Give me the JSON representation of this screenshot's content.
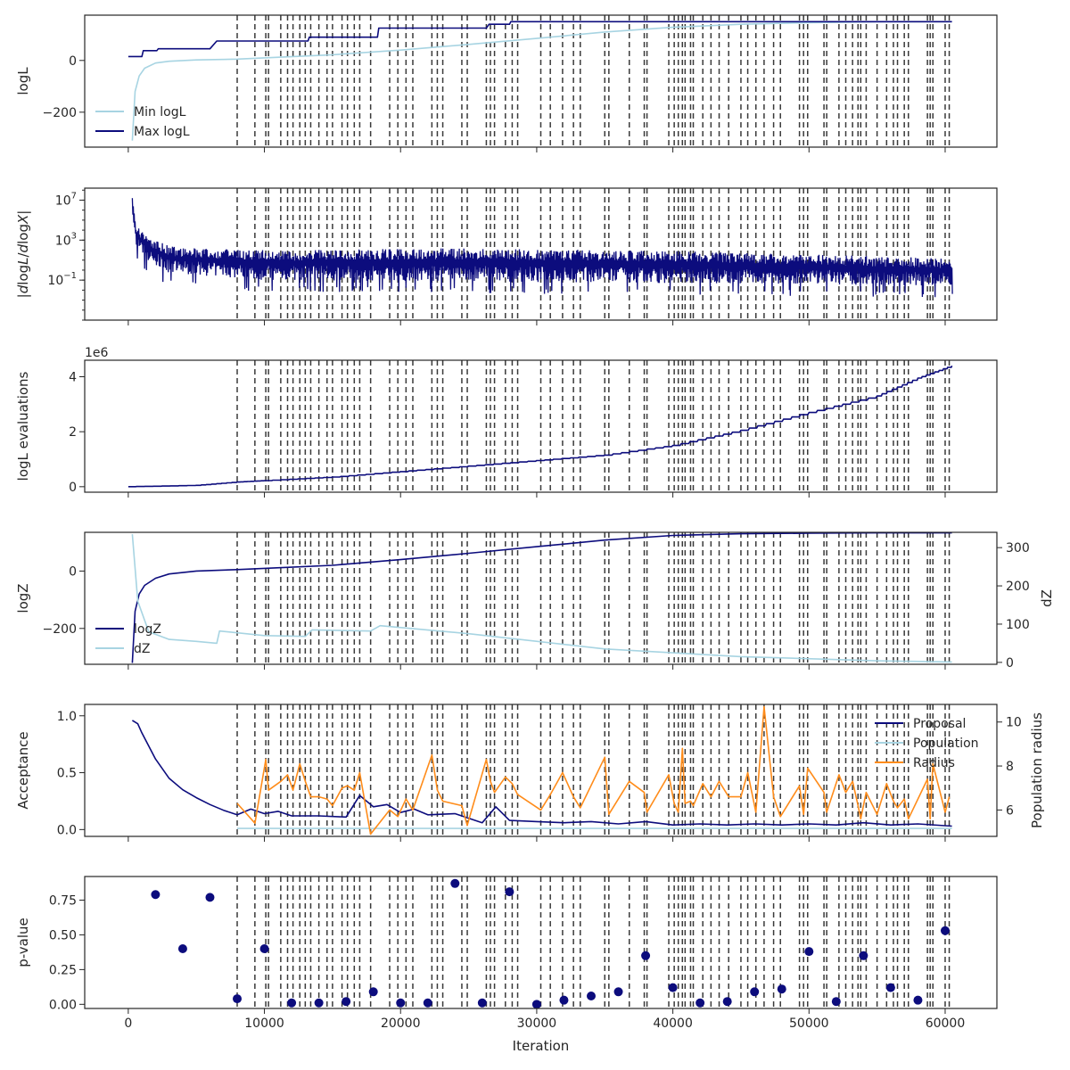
{
  "figure": {
    "iteration_label": "Iteration",
    "x_ticks": [
      0,
      10000,
      20000,
      30000,
      40000,
      50000,
      60000
    ],
    "x_range": [
      -3200,
      63800
    ],
    "colors": {
      "navy": "#0c0c7d",
      "lightblue": "#a7d4e2",
      "orange": "#ff8c1a",
      "axis": "#262626",
      "vline": "#3a3a3a"
    },
    "vlines": [
      8000,
      9300,
      10100,
      10300,
      11200,
      11700,
      12100,
      12600,
      13000,
      13400,
      14000,
      14600,
      15000,
      15700,
      16100,
      16600,
      17000,
      17800,
      19200,
      19800,
      20400,
      20900,
      22300,
      22700,
      23100,
      24500,
      24900,
      26300,
      26600,
      26900,
      27700,
      28200,
      28600,
      30300,
      31000,
      31900,
      32700,
      33200,
      35000,
      35300,
      36800,
      37900,
      38100,
      39700,
      40100,
      40400,
      40700,
      40900,
      41300,
      41500,
      42200,
      42800,
      43400,
      44100,
      45000,
      45500,
      46100,
      46700,
      47400,
      47900,
      49300,
      49600,
      49900,
      51100,
      51300,
      52200,
      52700,
      53200,
      53600,
      53800,
      54200,
      55000,
      55700,
      56200,
      56500,
      57000,
      57300,
      58700,
      58900,
      59100,
      60000,
      60300
    ]
  },
  "chart_data": [
    {
      "type": "line",
      "ylabel": "logL",
      "yticks": [
        -200,
        0
      ],
      "ylim": [
        -335,
        175
      ],
      "legend": {
        "position": "lower-left",
        "entries": [
          "Min logL",
          "Max logL"
        ]
      },
      "series": [
        {
          "name": "Min logL",
          "color": "lightblue",
          "step": false,
          "x": [
            300,
            500,
            800,
            1200,
            2000,
            3000,
            5000,
            8000,
            15000,
            20000,
            25000,
            30000,
            35000,
            40000,
            45000,
            50000,
            55000,
            60500
          ],
          "y": [
            -310,
            -120,
            -60,
            -30,
            -10,
            -3,
            2,
            5,
            22,
            40,
            62,
            85,
            110,
            128,
            140,
            146,
            149,
            150
          ]
        },
        {
          "name": "Max logL",
          "color": "navy",
          "step": true,
          "x": [
            0,
            1000,
            1100,
            2100,
            2200,
            6000,
            6500,
            13200,
            13300,
            18300,
            18400,
            26300,
            26500,
            28000,
            28100,
            60500
          ],
          "y": [
            15,
            15,
            38,
            38,
            45,
            45,
            75,
            75,
            90,
            90,
            125,
            125,
            140,
            140,
            150,
            150
          ]
        }
      ]
    },
    {
      "type": "line",
      "ylabel": "|dlogL/dlogX|",
      "ylabel_parts": {
        "prefix": "|",
        "d1": "d",
        "log1": "log",
        "L": "L",
        "slash": "/",
        "d2": "d",
        "log2": "log",
        "X": "X",
        "suffix": "|"
      },
      "log_scale": true,
      "yticks_exponent": [
        7,
        3,
        -1
      ],
      "ylim_log10": [
        -5,
        8.2
      ],
      "band_upper_log10": [
        [
          300,
          7.2
        ],
        [
          600,
          4.5
        ],
        [
          1500,
          3.3
        ],
        [
          3000,
          2.4
        ],
        [
          6000,
          2.1
        ],
        [
          12000,
          2.0
        ],
        [
          25000,
          2.2
        ],
        [
          30000,
          2.1
        ],
        [
          40000,
          1.9
        ],
        [
          50000,
          1.6
        ],
        [
          57000,
          1.3
        ],
        [
          60500,
          1.1
        ]
      ],
      "band_lower_log10": [
        [
          300,
          3.0
        ],
        [
          600,
          0.8
        ],
        [
          1500,
          -0.5
        ],
        [
          3000,
          -1.5
        ],
        [
          10000,
          -2.2
        ],
        [
          30000,
          -2.4
        ],
        [
          50000,
          -2.6
        ],
        [
          60500,
          -2.8
        ]
      ],
      "series": [
        {
          "name": "",
          "color": "navy"
        }
      ]
    },
    {
      "type": "line",
      "ylabel": "logL evaluations",
      "offset_text": "1e6",
      "yticks": [
        0,
        2,
        4
      ],
      "ylim": [
        -0.2,
        4.6
      ],
      "series": [
        {
          "name": "",
          "color": "navy",
          "x": [
            0,
            5000,
            8000,
            10000,
            15000,
            20000,
            25000,
            30000,
            35000,
            40000,
            45000,
            50000,
            55000,
            58000,
            60500
          ],
          "y": [
            0.0,
            0.05,
            0.17,
            0.22,
            0.35,
            0.55,
            0.75,
            0.95,
            1.15,
            1.5,
            2.05,
            2.7,
            3.3,
            3.95,
            4.4
          ]
        }
      ]
    },
    {
      "type": "line",
      "ylabel": "logZ",
      "ylabel2": "dZ",
      "yticks": [
        -200,
        0
      ],
      "ylim": [
        -325,
        135
      ],
      "yticks2": [
        0,
        100,
        200,
        300
      ],
      "ylim2": [
        -5,
        340
      ],
      "legend": {
        "position": "lower-left",
        "entries": [
          "logZ",
          "dZ"
        ]
      },
      "series": [
        {
          "name": "logZ",
          "color": "navy",
          "axis": "left",
          "x": [
            300,
            500,
            800,
            1200,
            2000,
            3000,
            5000,
            8000,
            15000,
            20000,
            25000,
            30000,
            35000,
            40000,
            45000,
            50000,
            55000,
            60500
          ],
          "y": [
            -320,
            -140,
            -80,
            -50,
            -25,
            -10,
            0,
            5,
            20,
            40,
            62,
            85,
            108,
            124,
            130,
            132,
            133,
            133
          ]
        },
        {
          "name": "dZ",
          "color": "lightblue",
          "axis": "right",
          "x": [
            300,
            700,
            1500,
            3000,
            5000,
            6500,
            6700,
            10000,
            13000,
            13500,
            17800,
            18500,
            25000,
            35000,
            45000,
            55000,
            60500
          ],
          "y": [
            335,
            160,
            80,
            60,
            55,
            50,
            82,
            70,
            68,
            85,
            82,
            96,
            75,
            35,
            15,
            4,
            1
          ]
        }
      ]
    },
    {
      "type": "line",
      "ylabel": "Acceptance",
      "ylabel2": "Population radius",
      "yticks": [
        0.0,
        0.5,
        1.0
      ],
      "ylim": [
        -0.06,
        1.1
      ],
      "yticks2": [
        6,
        8,
        10
      ],
      "ylim2": [
        4.8,
        10.8
      ],
      "legend": {
        "position": "upper-right",
        "entries": [
          "Proposal",
          "Population",
          "Radius"
        ]
      },
      "series": [
        {
          "name": "Proposal",
          "color": "navy",
          "axis": "left",
          "x": [
            300,
            700,
            1000,
            2000,
            3000,
            4000,
            5000,
            6000,
            7000,
            8000,
            9000,
            10000,
            11000,
            12000,
            14000,
            16000,
            17000,
            18000,
            19000,
            20000,
            21000,
            22000,
            24000,
            26000,
            27000,
            28000,
            30000,
            32000,
            34000,
            36000,
            38000,
            40000,
            42000,
            44000,
            46000,
            48000,
            50000,
            52000,
            54000,
            56000,
            58000,
            60500
          ],
          "y": [
            0.96,
            0.93,
            0.85,
            0.62,
            0.45,
            0.35,
            0.28,
            0.22,
            0.17,
            0.13,
            0.18,
            0.14,
            0.16,
            0.12,
            0.12,
            0.11,
            0.3,
            0.2,
            0.22,
            0.15,
            0.18,
            0.13,
            0.14,
            0.06,
            0.2,
            0.08,
            0.07,
            0.06,
            0.07,
            0.05,
            0.07,
            0.04,
            0.05,
            0.04,
            0.05,
            0.04,
            0.05,
            0.04,
            0.06,
            0.04,
            0.05,
            0.03
          ]
        },
        {
          "name": "Population",
          "color": "lightblue",
          "axis": "left",
          "x": [
            8000,
            10000,
            20000,
            30000,
            40000,
            50000,
            60500
          ],
          "y": [
            0.01,
            0.01,
            0.01,
            0.01,
            0.01,
            0.01,
            0.01
          ]
        },
        {
          "name": "Radius",
          "color": "orange",
          "axis": "right",
          "x": [
            8000,
            9300,
            10100,
            10300,
            11200,
            11700,
            12100,
            12600,
            13000,
            13400,
            14000,
            14600,
            15000,
            15700,
            16100,
            16600,
            17000,
            17800,
            19200,
            19800,
            20400,
            20900,
            22300,
            22700,
            23100,
            24500,
            24900,
            26300,
            26600,
            26900,
            27700,
            28200,
            28600,
            30300,
            31000,
            31900,
            32700,
            33200,
            35000,
            35300,
            36800,
            37900,
            38100,
            39700,
            40100,
            40400,
            40700,
            40900,
            41300,
            41500,
            42200,
            42800,
            43400,
            44100,
            45000,
            45500,
            46100,
            46700,
            47400,
            47900,
            49300,
            49600,
            49900,
            51100,
            51300,
            52200,
            52700,
            53200,
            53600,
            53800,
            54200,
            55000,
            55700,
            56200,
            56500,
            57000,
            57300,
            58700,
            58900,
            59100,
            60000,
            60300
          ],
          "y": [
            6.3,
            5.4,
            8.3,
            6.9,
            7.3,
            7.6,
            6.9,
            8.1,
            7.3,
            6.6,
            6.6,
            6.5,
            6.2,
            7.0,
            7.1,
            6.9,
            7.7,
            4.9,
            6.0,
            5.7,
            6.5,
            6.0,
            8.5,
            6.9,
            6.4,
            6.2,
            5.3,
            8.3,
            7.3,
            6.8,
            7.5,
            7.2,
            6.7,
            6.0,
            6.7,
            7.7,
            6.6,
            6.1,
            8.4,
            5.8,
            7.3,
            6.8,
            5.9,
            7.6,
            6.3,
            5.9,
            8.8,
            6.3,
            6.4,
            6.2,
            7.2,
            6.6,
            7.3,
            6.6,
            6.6,
            7.7,
            5.9,
            10.7,
            6.6,
            5.7,
            7.1,
            5.8,
            7.9,
            6.8,
            5.9,
            7.6,
            6.8,
            7.3,
            6.2,
            5.6,
            6.8,
            5.8,
            7.2,
            6.4,
            6.1,
            6.5,
            5.6,
            7.4,
            5.6,
            8.1,
            5.9,
            6.6
          ]
        }
      ]
    },
    {
      "type": "scatter",
      "ylabel": "p-value",
      "yticks": [
        0.0,
        0.25,
        0.5,
        0.75
      ],
      "ylim": [
        -0.03,
        0.92
      ],
      "series": [
        {
          "name": "",
          "color": "navy",
          "x": [
            2000,
            4000,
            6000,
            8000,
            10000,
            12000,
            14000,
            16000,
            18000,
            20000,
            22000,
            24000,
            26000,
            28000,
            30000,
            32000,
            34000,
            36000,
            38000,
            40000,
            42000,
            44000,
            46000,
            48000,
            50000,
            52000,
            54000,
            56000,
            58000,
            60000
          ],
          "y": [
            0.79,
            0.4,
            0.77,
            0.04,
            0.4,
            0.01,
            0.01,
            0.02,
            0.09,
            0.01,
            0.01,
            0.87,
            0.01,
            0.81,
            0.0,
            0.03,
            0.06,
            0.09,
            0.35,
            0.12,
            0.01,
            0.02,
            0.09,
            0.11,
            0.38,
            0.02,
            0.35,
            0.12,
            0.03,
            0.53
          ]
        }
      ]
    }
  ]
}
